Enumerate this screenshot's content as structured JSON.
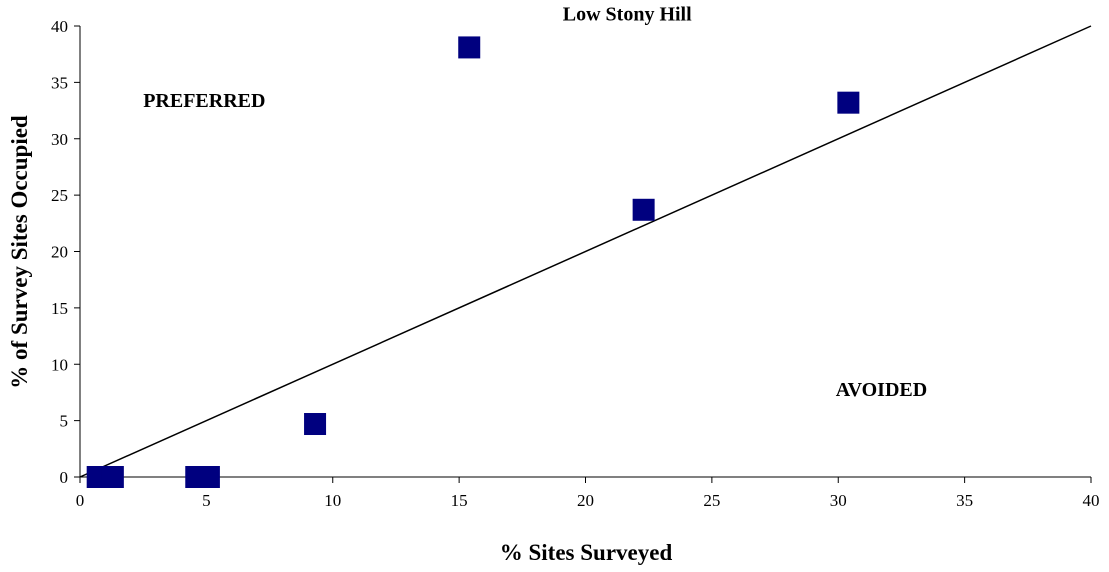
{
  "chart_data": {
    "type": "scatter",
    "title": "",
    "xlabel": "% Sites Surveyed",
    "ylabel": "% of Survey Sites Occupied",
    "xlim": [
      0,
      40
    ],
    "ylim": [
      0,
      40
    ],
    "x_ticks": [
      0,
      5,
      10,
      15,
      20,
      25,
      30,
      35,
      40
    ],
    "y_ticks": [
      0,
      5,
      10,
      15,
      20,
      25,
      30,
      35,
      40
    ],
    "x_tick_labels": [
      "0",
      "5",
      "10",
      "15",
      "20",
      "25",
      "30",
      "35",
      "40"
    ],
    "y_tick_labels": [
      "0",
      "5",
      "10",
      "15",
      "20",
      "25",
      "30",
      "35",
      "40"
    ],
    "grid": false,
    "legend": "none",
    "marker_color": "#00007f",
    "marker_shape": "square",
    "points": [
      {
        "x": 0.7,
        "y": 0
      },
      {
        "x": 1.3,
        "y": 0
      },
      {
        "x": 4.6,
        "y": 0
      },
      {
        "x": 5.1,
        "y": 0
      },
      {
        "x": 9.3,
        "y": 4.7
      },
      {
        "x": 15.4,
        "y": 38.1
      },
      {
        "x": 22.3,
        "y": 23.7
      },
      {
        "x": 30.4,
        "y": 33.2
      }
    ],
    "reference_line": {
      "x": [
        0,
        40
      ],
      "y": [
        0,
        40
      ],
      "color": "#000000"
    },
    "annotations": [
      {
        "text": "Low Stony Hill",
        "x": 19.1,
        "y": 40.5
      },
      {
        "text": "PREFERRED",
        "x": 2.5,
        "y": 32.8
      },
      {
        "text": "AVOIDED",
        "x": 29.9,
        "y": 7.2
      }
    ]
  }
}
